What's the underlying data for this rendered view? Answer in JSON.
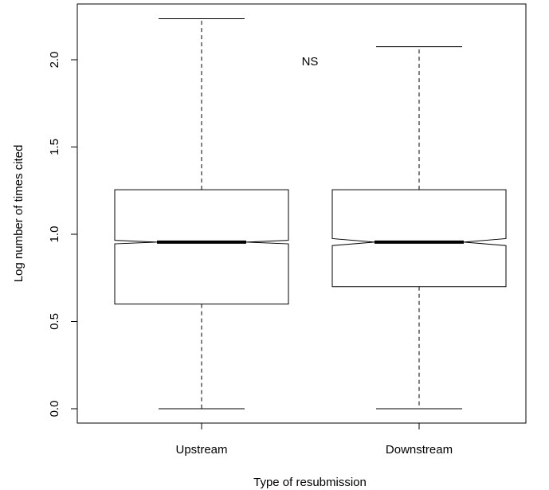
{
  "chart_data": {
    "type": "boxplot",
    "title": "",
    "xlabel": "Type of resubmission",
    "ylabel": "Log number of times cited",
    "ylim": [
      -0.08,
      2.28
    ],
    "yticks": [
      0.0,
      0.5,
      1.0,
      1.5,
      2.0
    ],
    "ytick_labels": [
      "0.0",
      "0.5",
      "1.0",
      "1.5",
      "2.0"
    ],
    "notched": true,
    "annotation": "NS",
    "grid": false,
    "categories": [
      "Upstream",
      "Downstream"
    ],
    "boxes": [
      {
        "name": "Upstream",
        "min": 0.0,
        "q1": 0.6,
        "median": 0.955,
        "q3": 1.255,
        "max": 2.235,
        "notch_low": 0.945,
        "notch_high": 0.965
      },
      {
        "name": "Downstream",
        "min": 0.0,
        "q1": 0.7,
        "median": 0.955,
        "q3": 1.255,
        "max": 2.075,
        "notch_low": 0.935,
        "notch_high": 0.975
      }
    ]
  }
}
